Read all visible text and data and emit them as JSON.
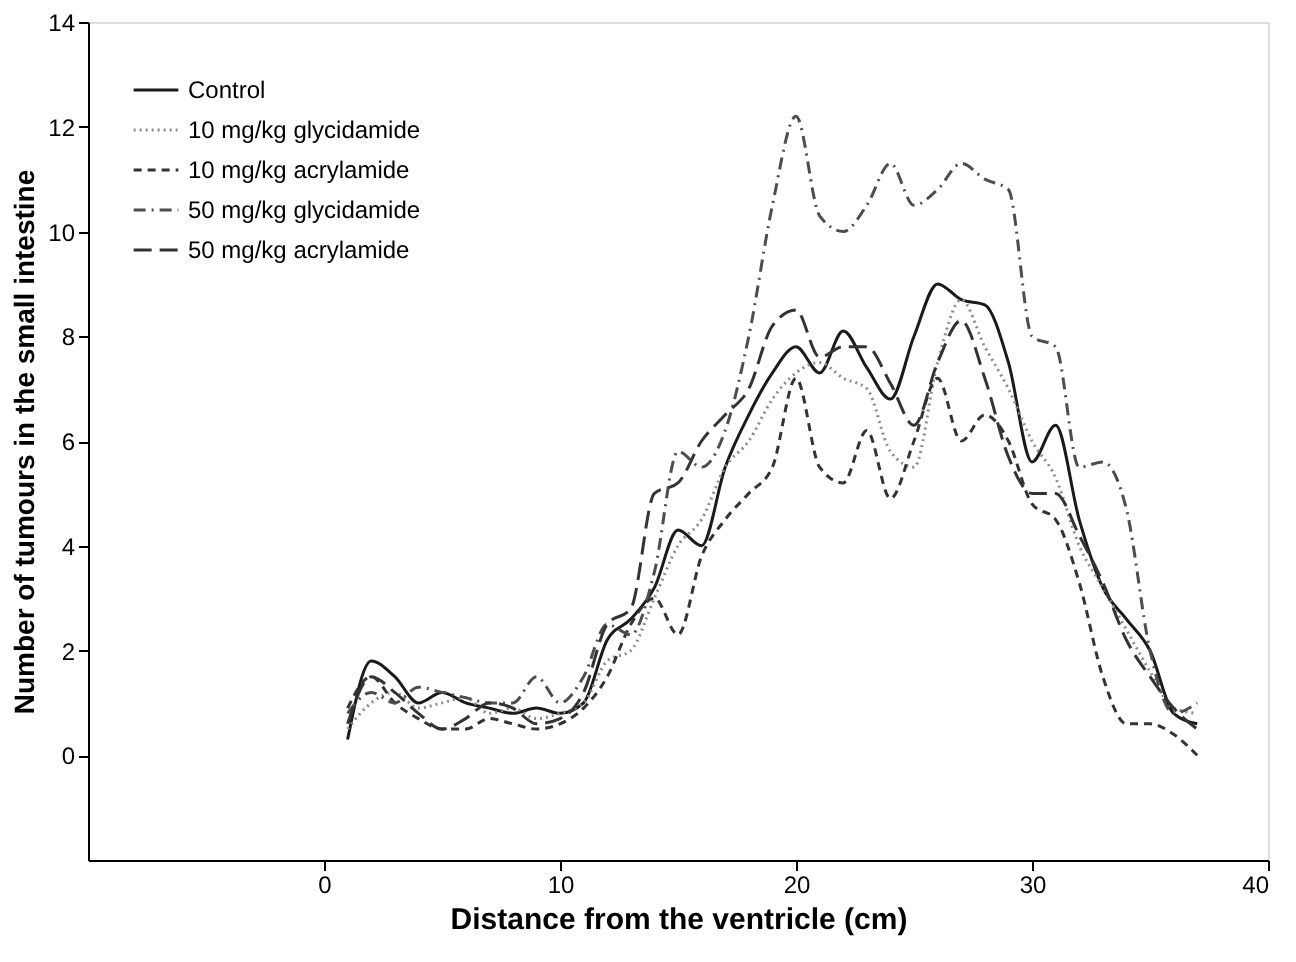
{
  "chart_data": {
    "type": "line",
    "xlabel": "Distance from the ventricle (cm)",
    "ylabel": "Number of tumours in the small intestine",
    "xlim": [
      -10,
      40
    ],
    "xticks": [
      0,
      10,
      20,
      30,
      40
    ],
    "ylim": [
      -2,
      14
    ],
    "yticks": [
      0,
      2,
      4,
      6,
      8,
      10,
      12,
      14
    ],
    "grid": false,
    "legend": "top left",
    "marker": "none",
    "x": [
      1,
      2,
      3,
      4,
      5,
      6,
      7,
      8,
      9,
      10,
      11,
      12,
      13,
      14,
      15,
      16,
      17,
      18,
      19,
      20,
      21,
      22,
      23,
      24,
      25,
      26,
      27,
      28,
      29,
      30,
      31,
      32,
      33,
      34,
      35,
      36,
      37
    ],
    "series": [
      {
        "name": "Control",
        "color": "#1a1a1a",
        "line_style": "solid",
        "values": [
          0.3,
          1.8,
          1.5,
          1.0,
          1.2,
          1.0,
          0.9,
          0.8,
          0.9,
          0.8,
          1.0,
          2.2,
          2.6,
          3.2,
          4.3,
          4.0,
          5.5,
          6.5,
          7.3,
          7.8,
          7.3,
          8.1,
          7.4,
          6.8,
          8.0,
          9.0,
          8.7,
          8.6,
          7.5,
          5.6,
          6.3,
          4.5,
          3.2,
          2.6,
          2.0,
          0.8,
          0.6
        ]
      },
      {
        "name": "10 mg/kg glycidamide",
        "color": "#8c8c8c",
        "line_style": "dotted",
        "values": [
          0.5,
          1.0,
          1.2,
          0.9,
          1.0,
          1.1,
          0.8,
          0.9,
          0.7,
          0.8,
          1.0,
          1.8,
          2.0,
          3.0,
          4.0,
          4.5,
          5.5,
          6.0,
          6.8,
          7.3,
          7.5,
          7.2,
          7.0,
          5.8,
          5.5,
          7.5,
          8.7,
          7.8,
          7.0,
          6.0,
          5.3,
          4.0,
          3.2,
          2.4,
          1.6,
          0.9,
          0.8
        ]
      },
      {
        "name": "10 mg/kg acrylamide",
        "color": "#333333",
        "line_style": "dashed",
        "values": [
          0.9,
          1.5,
          1.0,
          0.7,
          0.5,
          0.5,
          0.7,
          0.6,
          0.5,
          0.6,
          0.9,
          1.5,
          2.5,
          3.0,
          2.3,
          3.8,
          4.5,
          5.0,
          5.5,
          7.2,
          5.5,
          5.2,
          6.2,
          4.9,
          6.0,
          7.2,
          6.0,
          6.5,
          6.0,
          4.8,
          4.5,
          3.3,
          1.5,
          0.6,
          0.6,
          0.4,
          0.0
        ]
      },
      {
        "name": "50 mg/kg glycidamide",
        "color": "#4d4d4d",
        "line_style": "dashed",
        "values": [
          0.8,
          1.2,
          1.0,
          1.3,
          1.2,
          1.1,
          1.0,
          1.0,
          1.5,
          1.0,
          1.5,
          2.5,
          2.3,
          3.5,
          5.8,
          5.5,
          6.2,
          8.0,
          10.5,
          12.2,
          10.3,
          10.0,
          10.5,
          11.3,
          10.5,
          10.8,
          11.3,
          11.0,
          10.8,
          8.0,
          7.8,
          5.5,
          5.6,
          4.7,
          2.0,
          0.8,
          1.0
        ]
      },
      {
        "name": "50 mg/kg acrylamide",
        "color": "#333333",
        "line_style": "dashed",
        "values": [
          0.6,
          1.5,
          1.2,
          0.8,
          0.5,
          0.7,
          1.0,
          0.9,
          0.6,
          0.7,
          1.2,
          2.5,
          2.8,
          5.0,
          5.2,
          6.0,
          6.5,
          7.0,
          8.2,
          8.5,
          7.6,
          7.8,
          7.8,
          7.1,
          6.3,
          7.5,
          8.3,
          7.2,
          5.7,
          5.0,
          5.0,
          4.2,
          3.3,
          2.2,
          1.5,
          0.9,
          0.5
        ]
      }
    ]
  }
}
